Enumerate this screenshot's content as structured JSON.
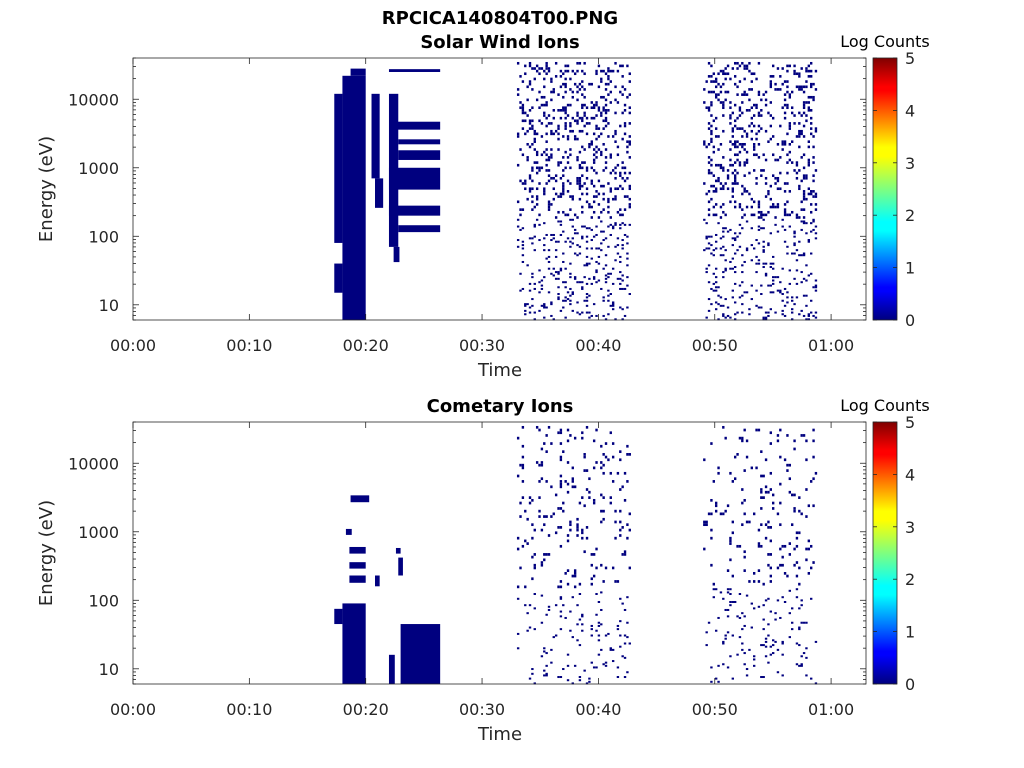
{
  "figure_title": "RPCICA140804T00.PNG",
  "colorbar": {
    "label": "Log Counts",
    "ticks": [
      "0",
      "1",
      "2",
      "3",
      "4",
      "5"
    ],
    "range": [
      0,
      5
    ],
    "colormap": "jet"
  },
  "chart_data": [
    {
      "type": "heatmap",
      "title": "Solar Wind Ions",
      "xlabel": "Time",
      "ylabel": "Energy (eV)",
      "xlim": [
        "00:00",
        "01:03"
      ],
      "ylim": [
        6,
        40000
      ],
      "yscale": "log",
      "xticks": [
        "00:00",
        "00:10",
        "00:20",
        "00:30",
        "00:40",
        "00:50",
        "01:00"
      ],
      "yticks": [
        "10",
        "100",
        "1000",
        "10000"
      ],
      "colorbar_label": "Log Counts",
      "clim": [
        0,
        5
      ],
      "cell_value": 0,
      "cell_color": "#00007f",
      "blocks": [
        {
          "t": [
            17.3,
            18.0
          ],
          "e": [
            80,
            12000
          ]
        },
        {
          "t": [
            17.3,
            18.0
          ],
          "e": [
            15,
            40
          ]
        },
        {
          "t": [
            18.0,
            20.0
          ],
          "e": [
            6,
            22000
          ]
        },
        {
          "t": [
            18.7,
            20.0
          ],
          "e": [
            22000,
            28000
          ]
        },
        {
          "t": [
            20.5,
            21.2
          ],
          "e": [
            700,
            12000
          ]
        },
        {
          "t": [
            20.8,
            21.5
          ],
          "e": [
            260,
            700
          ]
        },
        {
          "t": [
            22.0,
            26.4
          ],
          "e": [
            25000,
            27500
          ]
        },
        {
          "t": [
            22.0,
            22.8
          ],
          "e": [
            70,
            12000
          ]
        },
        {
          "t": [
            22.4,
            22.9
          ],
          "e": [
            42,
            70
          ]
        },
        {
          "t": [
            22.6,
            26.4
          ],
          "e": [
            3600,
            4700
          ]
        },
        {
          "t": [
            22.8,
            26.4
          ],
          "e": [
            2200,
            2600
          ]
        },
        {
          "t": [
            22.8,
            26.4
          ],
          "e": [
            1300,
            1800
          ]
        },
        {
          "t": [
            22.0,
            26.4
          ],
          "e": [
            480,
            1000
          ]
        },
        {
          "t": [
            22.0,
            26.4
          ],
          "e": [
            200,
            280
          ]
        },
        {
          "t": [
            22.8,
            26.4
          ],
          "e": [
            115,
            145
          ]
        }
      ],
      "scatter_regions": [
        {
          "t": [
            33.0,
            42.8
          ],
          "e": [
            180,
            35000
          ],
          "density": 0.5
        },
        {
          "t": [
            33.0,
            42.8
          ],
          "e": [
            6,
            180
          ],
          "density": 0.25
        },
        {
          "t": [
            49.0,
            58.8
          ],
          "e": [
            180,
            35000
          ],
          "density": 0.5
        },
        {
          "t": [
            49.0,
            58.8
          ],
          "e": [
            6,
            180
          ],
          "density": 0.25
        }
      ]
    },
    {
      "type": "heatmap",
      "title": "Cometary Ions",
      "xlabel": "Time",
      "ylabel": "Energy (eV)",
      "xlim": [
        "00:00",
        "01:03"
      ],
      "ylim": [
        6,
        40000
      ],
      "yscale": "log",
      "xticks": [
        "00:00",
        "00:10",
        "00:20",
        "00:30",
        "00:40",
        "00:50",
        "01:00"
      ],
      "yticks": [
        "10",
        "100",
        "1000",
        "10000"
      ],
      "colorbar_label": "Log Counts",
      "clim": [
        0,
        5
      ],
      "cell_value": 0,
      "cell_color": "#00007f",
      "blocks": [
        {
          "t": [
            18.7,
            20.3
          ],
          "e": [
            2700,
            3400
          ]
        },
        {
          "t": [
            18.3,
            18.8
          ],
          "e": [
            900,
            1100
          ]
        },
        {
          "t": [
            18.6,
            20.0
          ],
          "e": [
            480,
            600
          ]
        },
        {
          "t": [
            18.6,
            20.0
          ],
          "e": [
            290,
            360
          ]
        },
        {
          "t": [
            18.6,
            20.0
          ],
          "e": [
            180,
            230
          ]
        },
        {
          "t": [
            18.0,
            20.0
          ],
          "e": [
            6,
            90
          ]
        },
        {
          "t": [
            17.3,
            18.0
          ],
          "e": [
            45,
            75
          ]
        },
        {
          "t": [
            20.8,
            21.2
          ],
          "e": [
            160,
            230
          ]
        },
        {
          "t": [
            22.0,
            22.5
          ],
          "e": [
            6,
            16
          ]
        },
        {
          "t": [
            23.0,
            26.4
          ],
          "e": [
            6,
            45
          ]
        },
        {
          "t": [
            22.6,
            23.0
          ],
          "e": [
            480,
            580
          ]
        },
        {
          "t": [
            22.8,
            23.2
          ],
          "e": [
            230,
            420
          ]
        }
      ],
      "scatter_regions": [
        {
          "t": [
            33.0,
            42.8
          ],
          "e": [
            150,
            35000
          ],
          "density": 0.18
        },
        {
          "t": [
            33.0,
            42.8
          ],
          "e": [
            6,
            150
          ],
          "density": 0.12
        },
        {
          "t": [
            49.0,
            58.8
          ],
          "e": [
            150,
            35000
          ],
          "density": 0.15
        },
        {
          "t": [
            49.0,
            58.8
          ],
          "e": [
            6,
            150
          ],
          "density": 0.12
        }
      ]
    }
  ]
}
